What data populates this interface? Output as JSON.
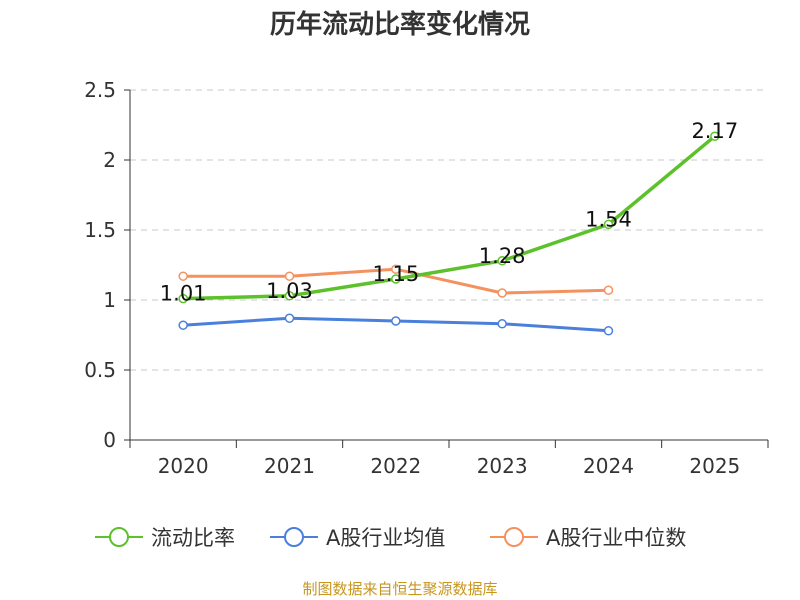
{
  "chart_data": {
    "type": "line",
    "title": "历年流动比率变化情况",
    "categories": [
      "2020",
      "2021",
      "2022",
      "2023",
      "2024",
      "2025"
    ],
    "ylim": [
      0,
      2.5
    ],
    "yticks": [
      "0",
      "0.5",
      "1",
      "1.5",
      "2",
      "2.5"
    ],
    "grid": true,
    "legend_position": "bottom",
    "series": [
      {
        "name": "流动比率",
        "color": "#5cc12a",
        "values": [
          1.01,
          1.03,
          1.15,
          1.28,
          1.54,
          2.17
        ],
        "labels": [
          "1.01",
          "1.03",
          "1.15",
          "1.28",
          "1.54",
          "2.17"
        ]
      },
      {
        "name": "A股行业均值",
        "color": "#4a7fdb",
        "values": [
          0.82,
          0.87,
          0.85,
          0.83,
          0.78,
          null
        ]
      },
      {
        "name": "A股行业中位数",
        "color": "#f4915e",
        "values": [
          1.17,
          1.17,
          1.22,
          1.05,
          1.07,
          null
        ]
      }
    ]
  },
  "source": "制图数据来自恒生聚源数据库"
}
